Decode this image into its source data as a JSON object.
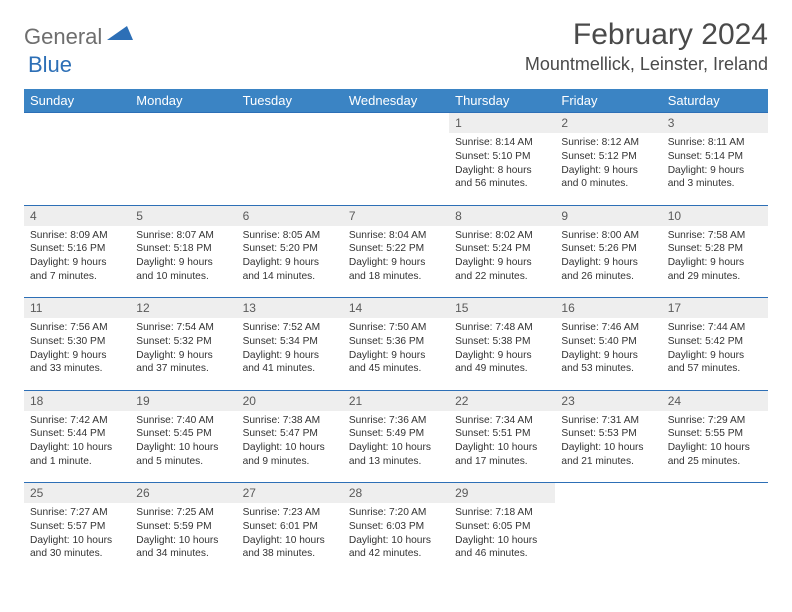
{
  "logo": {
    "part1": "General",
    "part2": "Blue"
  },
  "title": "February 2024",
  "location": "Mountmellick, Leinster, Ireland",
  "colors": {
    "header_bg": "#3b84c4",
    "header_text": "#ffffff",
    "rule": "#2d6fb6",
    "daynum_bg": "#eeeeee",
    "text": "#333333",
    "logo_gray": "#6e6e6e",
    "logo_blue": "#2d6fb6"
  },
  "weekdays": [
    "Sunday",
    "Monday",
    "Tuesday",
    "Wednesday",
    "Thursday",
    "Friday",
    "Saturday"
  ],
  "weeks": [
    [
      null,
      null,
      null,
      null,
      {
        "n": "1",
        "sr": "8:14 AM",
        "ss": "5:10 PM",
        "dl": "8 hours and 56 minutes."
      },
      {
        "n": "2",
        "sr": "8:12 AM",
        "ss": "5:12 PM",
        "dl": "9 hours and 0 minutes."
      },
      {
        "n": "3",
        "sr": "8:11 AM",
        "ss": "5:14 PM",
        "dl": "9 hours and 3 minutes."
      }
    ],
    [
      {
        "n": "4",
        "sr": "8:09 AM",
        "ss": "5:16 PM",
        "dl": "9 hours and 7 minutes."
      },
      {
        "n": "5",
        "sr": "8:07 AM",
        "ss": "5:18 PM",
        "dl": "9 hours and 10 minutes."
      },
      {
        "n": "6",
        "sr": "8:05 AM",
        "ss": "5:20 PM",
        "dl": "9 hours and 14 minutes."
      },
      {
        "n": "7",
        "sr": "8:04 AM",
        "ss": "5:22 PM",
        "dl": "9 hours and 18 minutes."
      },
      {
        "n": "8",
        "sr": "8:02 AM",
        "ss": "5:24 PM",
        "dl": "9 hours and 22 minutes."
      },
      {
        "n": "9",
        "sr": "8:00 AM",
        "ss": "5:26 PM",
        "dl": "9 hours and 26 minutes."
      },
      {
        "n": "10",
        "sr": "7:58 AM",
        "ss": "5:28 PM",
        "dl": "9 hours and 29 minutes."
      }
    ],
    [
      {
        "n": "11",
        "sr": "7:56 AM",
        "ss": "5:30 PM",
        "dl": "9 hours and 33 minutes."
      },
      {
        "n": "12",
        "sr": "7:54 AM",
        "ss": "5:32 PM",
        "dl": "9 hours and 37 minutes."
      },
      {
        "n": "13",
        "sr": "7:52 AM",
        "ss": "5:34 PM",
        "dl": "9 hours and 41 minutes."
      },
      {
        "n": "14",
        "sr": "7:50 AM",
        "ss": "5:36 PM",
        "dl": "9 hours and 45 minutes."
      },
      {
        "n": "15",
        "sr": "7:48 AM",
        "ss": "5:38 PM",
        "dl": "9 hours and 49 minutes."
      },
      {
        "n": "16",
        "sr": "7:46 AM",
        "ss": "5:40 PM",
        "dl": "9 hours and 53 minutes."
      },
      {
        "n": "17",
        "sr": "7:44 AM",
        "ss": "5:42 PM",
        "dl": "9 hours and 57 minutes."
      }
    ],
    [
      {
        "n": "18",
        "sr": "7:42 AM",
        "ss": "5:44 PM",
        "dl": "10 hours and 1 minute."
      },
      {
        "n": "19",
        "sr": "7:40 AM",
        "ss": "5:45 PM",
        "dl": "10 hours and 5 minutes."
      },
      {
        "n": "20",
        "sr": "7:38 AM",
        "ss": "5:47 PM",
        "dl": "10 hours and 9 minutes."
      },
      {
        "n": "21",
        "sr": "7:36 AM",
        "ss": "5:49 PM",
        "dl": "10 hours and 13 minutes."
      },
      {
        "n": "22",
        "sr": "7:34 AM",
        "ss": "5:51 PM",
        "dl": "10 hours and 17 minutes."
      },
      {
        "n": "23",
        "sr": "7:31 AM",
        "ss": "5:53 PM",
        "dl": "10 hours and 21 minutes."
      },
      {
        "n": "24",
        "sr": "7:29 AM",
        "ss": "5:55 PM",
        "dl": "10 hours and 25 minutes."
      }
    ],
    [
      {
        "n": "25",
        "sr": "7:27 AM",
        "ss": "5:57 PM",
        "dl": "10 hours and 30 minutes."
      },
      {
        "n": "26",
        "sr": "7:25 AM",
        "ss": "5:59 PM",
        "dl": "10 hours and 34 minutes."
      },
      {
        "n": "27",
        "sr": "7:23 AM",
        "ss": "6:01 PM",
        "dl": "10 hours and 38 minutes."
      },
      {
        "n": "28",
        "sr": "7:20 AM",
        "ss": "6:03 PM",
        "dl": "10 hours and 42 minutes."
      },
      {
        "n": "29",
        "sr": "7:18 AM",
        "ss": "6:05 PM",
        "dl": "10 hours and 46 minutes."
      },
      null,
      null
    ]
  ],
  "labels": {
    "sunrise": "Sunrise:",
    "sunset": "Sunset:",
    "daylight": "Daylight:"
  }
}
